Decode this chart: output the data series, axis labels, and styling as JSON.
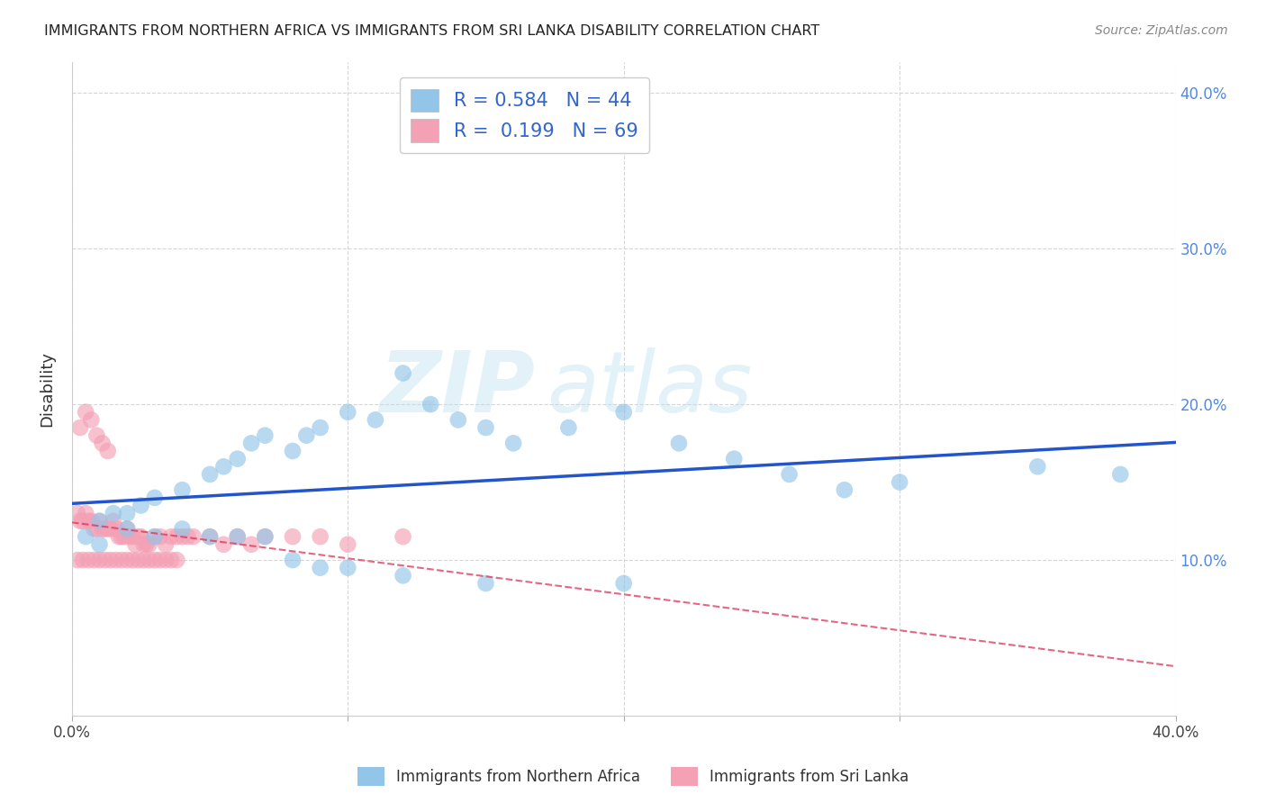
{
  "title": "IMMIGRANTS FROM NORTHERN AFRICA VS IMMIGRANTS FROM SRI LANKA DISABILITY CORRELATION CHART",
  "source": "Source: ZipAtlas.com",
  "ylabel": "Disability",
  "xlim": [
    0.0,
    0.4
  ],
  "ylim": [
    0.0,
    0.4
  ],
  "blue_R": 0.584,
  "blue_N": 44,
  "pink_R": 0.199,
  "pink_N": 69,
  "blue_color": "#92C5E8",
  "pink_color": "#F4A0B5",
  "blue_line_color": "#2255CC",
  "pink_line_color": "#DD3355",
  "watermark_zip": "ZIP",
  "watermark_atlas": "atlas",
  "legend_label_blue": "Immigrants from Northern Africa",
  "legend_label_pink": "Immigrants from Sri Lanka",
  "blue_scatter_x": [
    0.005,
    0.01,
    0.015,
    0.02,
    0.025,
    0.03,
    0.04,
    0.05,
    0.055,
    0.06,
    0.065,
    0.07,
    0.08,
    0.085,
    0.09,
    0.1,
    0.11,
    0.12,
    0.13,
    0.14,
    0.15,
    0.16,
    0.18,
    0.2,
    0.22,
    0.24,
    0.26,
    0.28,
    0.3,
    0.35,
    0.38,
    0.01,
    0.02,
    0.03,
    0.04,
    0.05,
    0.06,
    0.07,
    0.08,
    0.09,
    0.1,
    0.12,
    0.15,
    0.2
  ],
  "blue_scatter_y": [
    0.115,
    0.125,
    0.13,
    0.13,
    0.135,
    0.14,
    0.145,
    0.155,
    0.16,
    0.165,
    0.175,
    0.18,
    0.17,
    0.18,
    0.185,
    0.195,
    0.19,
    0.22,
    0.2,
    0.19,
    0.185,
    0.175,
    0.185,
    0.195,
    0.175,
    0.165,
    0.155,
    0.145,
    0.15,
    0.16,
    0.155,
    0.11,
    0.12,
    0.115,
    0.12,
    0.115,
    0.115,
    0.115,
    0.1,
    0.095,
    0.095,
    0.09,
    0.085,
    0.085
  ],
  "pink_scatter_x": [
    0.002,
    0.003,
    0.004,
    0.005,
    0.006,
    0.007,
    0.008,
    0.009,
    0.01,
    0.011,
    0.012,
    0.013,
    0.014,
    0.015,
    0.016,
    0.017,
    0.018,
    0.019,
    0.02,
    0.021,
    0.022,
    0.023,
    0.024,
    0.025,
    0.026,
    0.027,
    0.028,
    0.03,
    0.032,
    0.034,
    0.036,
    0.038,
    0.04,
    0.042,
    0.044,
    0.05,
    0.055,
    0.06,
    0.065,
    0.07,
    0.08,
    0.09,
    0.1,
    0.12,
    0.003,
    0.005,
    0.007,
    0.009,
    0.011,
    0.013,
    0.002,
    0.004,
    0.006,
    0.008,
    0.01,
    0.012,
    0.014,
    0.016,
    0.018,
    0.02,
    0.022,
    0.024,
    0.026,
    0.028,
    0.03,
    0.032,
    0.034,
    0.036,
    0.038
  ],
  "pink_scatter_y": [
    0.13,
    0.125,
    0.125,
    0.13,
    0.125,
    0.125,
    0.12,
    0.12,
    0.125,
    0.12,
    0.12,
    0.12,
    0.12,
    0.125,
    0.12,
    0.115,
    0.115,
    0.115,
    0.12,
    0.115,
    0.115,
    0.11,
    0.115,
    0.115,
    0.11,
    0.11,
    0.11,
    0.115,
    0.115,
    0.11,
    0.115,
    0.115,
    0.115,
    0.115,
    0.115,
    0.115,
    0.11,
    0.115,
    0.11,
    0.115,
    0.115,
    0.115,
    0.11,
    0.115,
    0.185,
    0.195,
    0.19,
    0.18,
    0.175,
    0.17,
    0.1,
    0.1,
    0.1,
    0.1,
    0.1,
    0.1,
    0.1,
    0.1,
    0.1,
    0.1,
    0.1,
    0.1,
    0.1,
    0.1,
    0.1,
    0.1,
    0.1,
    0.1,
    0.1
  ]
}
